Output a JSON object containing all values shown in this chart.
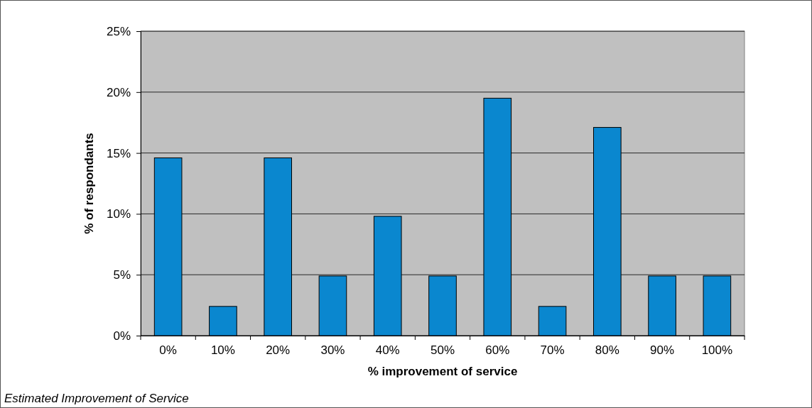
{
  "chart_data": {
    "type": "bar",
    "xlabel": "% improvement of service",
    "ylabel": "% of respondants",
    "categories": [
      "0%",
      "10%",
      "20%",
      "30%",
      "40%",
      "50%",
      "60%",
      "70%",
      "80%",
      "90%",
      "100%"
    ],
    "values": [
      14.6,
      2.4,
      14.6,
      4.9,
      9.8,
      4.9,
      19.5,
      2.4,
      17.1,
      4.9,
      4.9
    ],
    "color": "#0a87cf",
    "ylim": [
      0,
      25
    ],
    "yticks": [
      {
        "value": 0,
        "label": "0%"
      },
      {
        "value": 5,
        "label": "5%"
      },
      {
        "value": 10,
        "label": "10%"
      },
      {
        "value": 15,
        "label": "15%"
      },
      {
        "value": 20,
        "label": "20%"
      },
      {
        "value": 25,
        "label": "25%"
      }
    ],
    "grid": "y",
    "annotations": [
      "Estimated Improvement of Service"
    ]
  }
}
